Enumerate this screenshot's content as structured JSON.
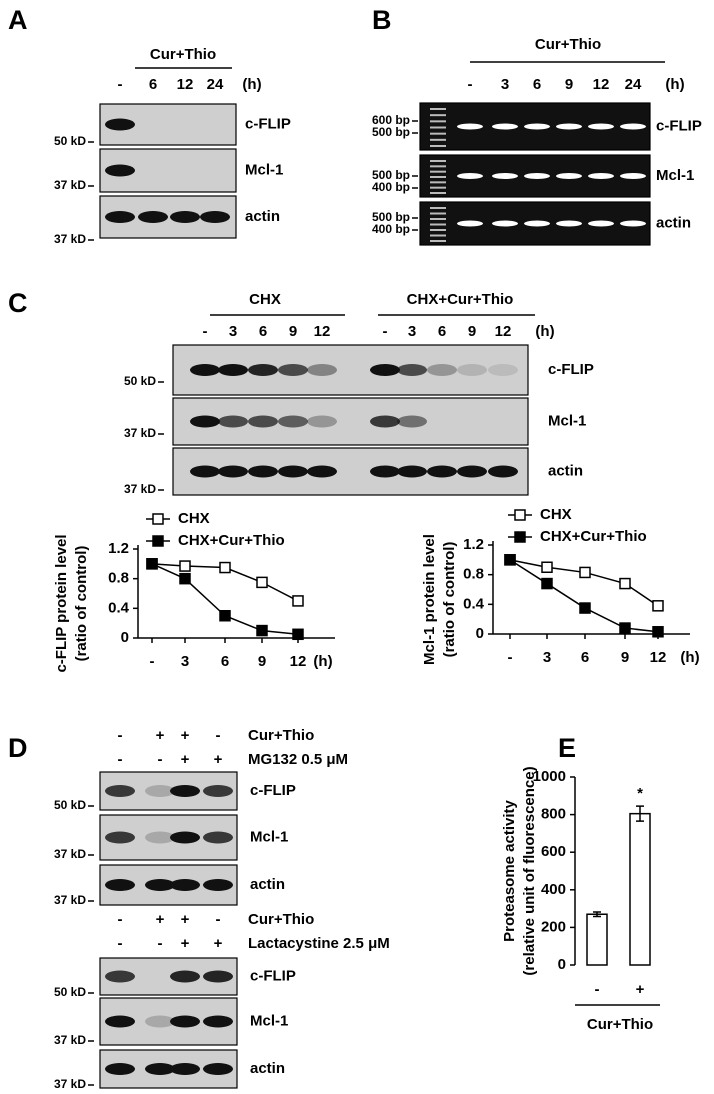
{
  "panels": {
    "A": {
      "label": "A",
      "group": "Cur+Thio",
      "lanes": [
        "-",
        "6",
        "12",
        "24"
      ],
      "unit": "(h)",
      "rows": [
        {
          "name": "c-FLIP",
          "markers": [
            "50 kD"
          ]
        },
        {
          "name": "Mcl-1",
          "markers": [
            "37 kD"
          ]
        },
        {
          "name": "actin",
          "markers": [
            "37 kD"
          ]
        }
      ]
    },
    "B": {
      "label": "B",
      "group": "Cur+Thio",
      "lanes": [
        "-",
        "3",
        "6",
        "9",
        "12",
        "24"
      ],
      "unit": "(h)",
      "rows": [
        {
          "name": "c-FLIP",
          "markers": [
            "600 bp",
            "500 bp"
          ]
        },
        {
          "name": "Mcl-1",
          "markers": [
            "500 bp",
            "400 bp"
          ]
        },
        {
          "name": "actin",
          "markers": [
            "500 bp",
            "400 bp"
          ]
        }
      ]
    },
    "C": {
      "label": "C",
      "groups": [
        {
          "name": "CHX",
          "lanes": [
            "-",
            "3",
            "6",
            "9",
            "12"
          ]
        },
        {
          "name": "CHX+Cur+Thio",
          "lanes": [
            "-",
            "3",
            "6",
            "9",
            "12"
          ]
        }
      ],
      "unit": "(h)",
      "rows": [
        {
          "name": "c-FLIP",
          "markers": [
            "50 kD"
          ]
        },
        {
          "name": "Mcl-1",
          "markers": [
            "37 kD"
          ]
        },
        {
          "name": "actin",
          "markers": [
            "37 kD"
          ]
        }
      ]
    },
    "D": {
      "label": "D",
      "blocks": [
        {
          "conditions": [
            {
              "name": "Cur+Thio",
              "signs": [
                "-",
                "+",
                "+",
                "-"
              ]
            },
            {
              "name": "MG132 0.5 μM",
              "signs": [
                "-",
                "-",
                "+",
                "+"
              ]
            }
          ],
          "rows": [
            {
              "name": "c-FLIP",
              "markers": [
                "50 kD"
              ]
            },
            {
              "name": "Mcl-1",
              "markers": [
                "37 kD"
              ]
            },
            {
              "name": "actin",
              "markers": [
                "37 kD"
              ]
            }
          ]
        },
        {
          "conditions": [
            {
              "name": "Cur+Thio",
              "signs": [
                "-",
                "+",
                "+",
                "-"
              ]
            },
            {
              "name": "Lactacystine 2.5 μM",
              "signs": [
                "-",
                "-",
                "+",
                "+"
              ]
            }
          ],
          "rows": [
            {
              "name": "c-FLIP",
              "markers": [
                "50 kD"
              ]
            },
            {
              "name": "Mcl-1",
              "markers": [
                "37 kD"
              ]
            },
            {
              "name": "actin",
              "markers": [
                "37 kD"
              ]
            }
          ]
        }
      ]
    },
    "E": {
      "label": "E"
    }
  },
  "chart_data": [
    {
      "type": "line",
      "y_label": [
        "c-FLIP protein level",
        "(ratio of control)"
      ],
      "categories": [
        "-",
        "3",
        "6",
        "9",
        "12"
      ],
      "x_unit": "(h)",
      "ylim": [
        0,
        1.2
      ],
      "yticks": [
        0,
        0.4,
        0.8,
        1.2
      ],
      "series": [
        {
          "name": "CHX",
          "marker": "open-square",
          "color": "#000000",
          "values": [
            1.0,
            0.97,
            0.95,
            0.75,
            0.5
          ]
        },
        {
          "name": "CHX+Cur+Thio",
          "marker": "filled-square",
          "color": "#000000",
          "values": [
            1.0,
            0.8,
            0.3,
            0.1,
            0.05
          ]
        }
      ]
    },
    {
      "type": "line",
      "y_label": [
        "Mcl-1 protein level",
        "(ratio of control)"
      ],
      "categories": [
        "-",
        "3",
        "6",
        "9",
        "12"
      ],
      "x_unit": "(h)",
      "ylim": [
        0,
        1.2
      ],
      "yticks": [
        0,
        0.4,
        0.8,
        1.2
      ],
      "series": [
        {
          "name": "CHX",
          "marker": "open-square",
          "color": "#000000",
          "values": [
            1.0,
            0.9,
            0.83,
            0.68,
            0.38
          ]
        },
        {
          "name": "CHX+Cur+Thio",
          "marker": "filled-square",
          "color": "#000000",
          "values": [
            1.0,
            0.68,
            0.35,
            0.08,
            0.03
          ]
        }
      ]
    },
    {
      "type": "bar",
      "y_label": [
        "Proteasome activity",
        "(relative unit of fluorescence)"
      ],
      "categories": [
        "-",
        "+"
      ],
      "group_label": "Cur+Thio",
      "values": [
        270,
        805
      ],
      "errors": [
        12,
        40
      ],
      "annotation": "*",
      "color": "#ffffff",
      "ylim": [
        0,
        1000
      ],
      "yticks": [
        0,
        200,
        400,
        600,
        800,
        1000
      ]
    }
  ]
}
